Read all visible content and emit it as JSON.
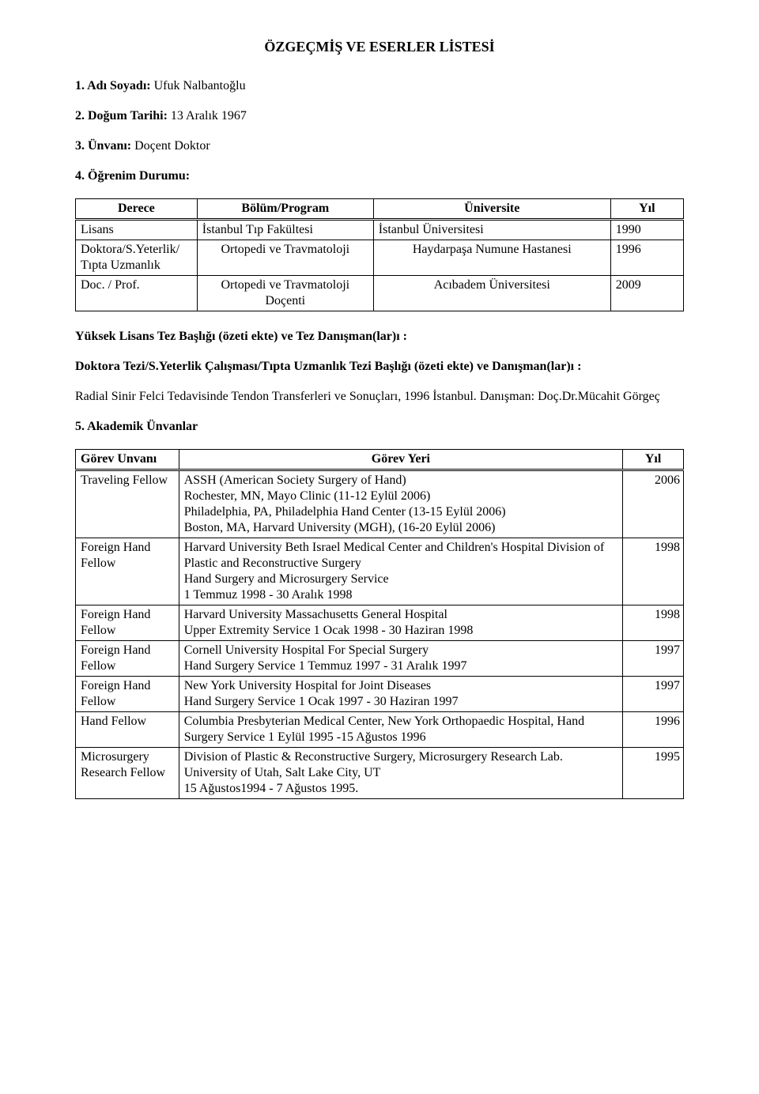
{
  "title": "ÖZGEÇMİŞ VE ESERLER LİSTESİ",
  "fields": {
    "f1_label": "1. Adı Soyadı:",
    "f1_value": " Ufuk Nalbantoğlu",
    "f2_label": "2. Doğum Tarihi:",
    "f2_value": " 13 Aralık 1967",
    "f3_label": "3. Ünvanı:",
    "f3_value": " Doçent Doktor",
    "f4_label": "4. Öğrenim Durumu:"
  },
  "education": {
    "headers": {
      "c1": "Derece",
      "c2": "Bölüm/Program",
      "c3": "Üniversite",
      "c4": "Yıl"
    },
    "rows": [
      {
        "c1": "Lisans",
        "c2": "İstanbul Tıp Fakültesi",
        "c3": "İstanbul Üniversitesi",
        "c4": "1990"
      },
      {
        "c1": "Doktora/S.Yeterlik/ Tıpta Uzmanlık",
        "c2": "Ortopedi ve Travmatoloji",
        "c3": "Haydarpaşa Numune Hastanesi",
        "c4": "1996"
      },
      {
        "c1": "Doc. / Prof.",
        "c2": "Ortopedi ve Travmatoloji Doçenti",
        "c3": "Acıbadem Üniversitesi",
        "c4": "2009"
      }
    ]
  },
  "yltez_heading": "Yüksek Lisans Tez Başlığı (özeti ekte) ve Tez Danışman(lar)ı  :",
  "doktora_heading": "Doktora Tezi/S.Yeterlik Çalışması/Tıpta Uzmanlık Tezi Başlığı (özeti ekte)  ve Danışman(lar)ı :",
  "thesis_text": "Radial Sinir Felci Tedavisinde Tendon Transferleri ve Sonuçları, 1996 İstanbul. Danışman: Doç.Dr.Mücahit Görgeç",
  "academic_label": "5. Akademik Ünvanlar",
  "academic": {
    "headers": {
      "c1": "Görev Unvanı",
      "c2": "Görev Yeri",
      "c3": "Yıl"
    },
    "rows": [
      {
        "c1": "Traveling Fellow",
        "c2": "ASSH (American Society Surgery of Hand)\nRochester, MN, Mayo Clinic (11-12 Eylül 2006)\nPhiladelphia, PA, Philadelphia Hand Center (13-15 Eylül 2006)\nBoston, MA, Harvard University (MGH), (16-20 Eylül 2006)",
        "c3": "2006"
      },
      {
        "c1": "Foreign Hand Fellow",
        "c2": "Harvard University Beth Israel Medical Center and Children's Hospital Division of Plastic and Reconstructive Surgery\nHand Surgery and Microsurgery Service\n1 Temmuz 1998 -  30 Aralık 1998",
        "c3": "1998"
      },
      {
        "c1": "Foreign Hand Fellow",
        "c2": "Harvard University Massachusetts General Hospital\nUpper Extremity Service 1 Ocak 1998  -  30 Haziran 1998",
        "c3": "1998"
      },
      {
        "c1": "Foreign Hand Fellow",
        "c2": "Cornell University Hospital For Special Surgery\nHand Surgery Service 1 Temmuz 1997 -  31 Aralık 1997",
        "c3": "1997"
      },
      {
        "c1": "Foreign Hand Fellow",
        "c2": "New York University Hospital for Joint Diseases\nHand Surgery Service 1 Ocak 1997 -  30 Haziran 1997",
        "c3": "1997"
      },
      {
        "c1": "Hand Fellow",
        "c2": "Columbia Presbyterian Medical Center, New York Orthopaedic Hospital, Hand Surgery Service 1 Eylül 1995 -15 Ağustos 1996",
        "c3": "1996"
      },
      {
        "c1": "Microsurgery Research Fellow",
        "c2": "Division of Plastic & Reconstructive Surgery, Microsurgery Research Lab. University of Utah, Salt Lake City, UT\n15 Ağustos1994 -  7 Ağustos 1995.",
        "c3": "1995"
      }
    ]
  }
}
